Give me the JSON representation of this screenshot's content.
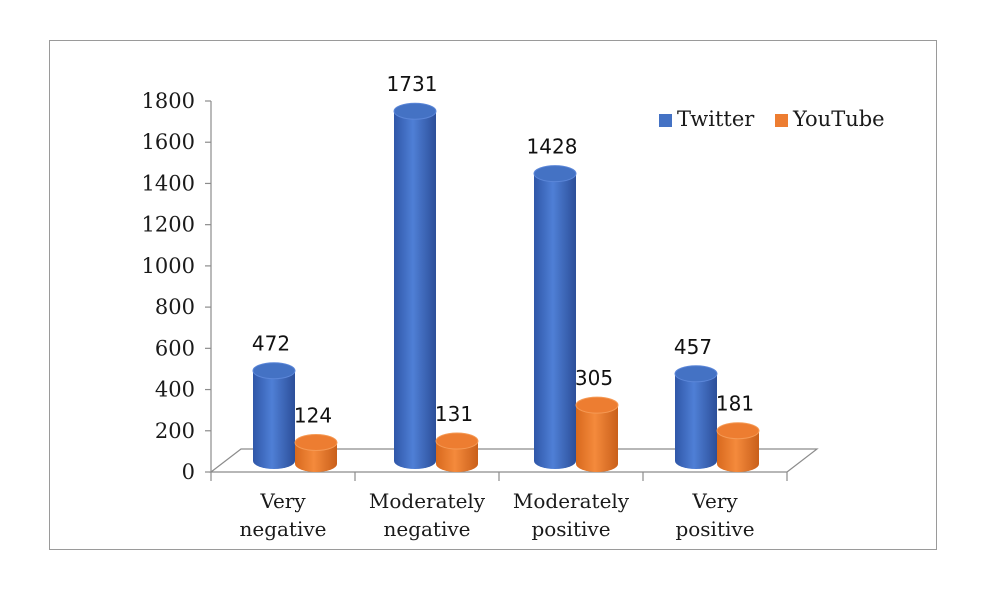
{
  "chart_data": {
    "type": "bar",
    "title": "",
    "xlabel": "",
    "ylabel": "",
    "ylim": [
      0,
      1800
    ],
    "yticks": [
      0,
      200,
      400,
      600,
      800,
      1000,
      1200,
      1400,
      1600,
      1800
    ],
    "grid": false,
    "legend_position": "top-right",
    "categories": [
      [
        "Very",
        "negative"
      ],
      [
        "Moderately",
        "negative"
      ],
      [
        "Moderately",
        "positive"
      ],
      [
        "Very",
        "positive"
      ]
    ],
    "series": [
      {
        "name": "Twitter",
        "color": "#4472C4",
        "values": [
          472,
          1731,
          1428,
          457
        ]
      },
      {
        "name": "YouTube",
        "color": "#ED7D31",
        "values": [
          124,
          131,
          305,
          181
        ]
      }
    ]
  }
}
